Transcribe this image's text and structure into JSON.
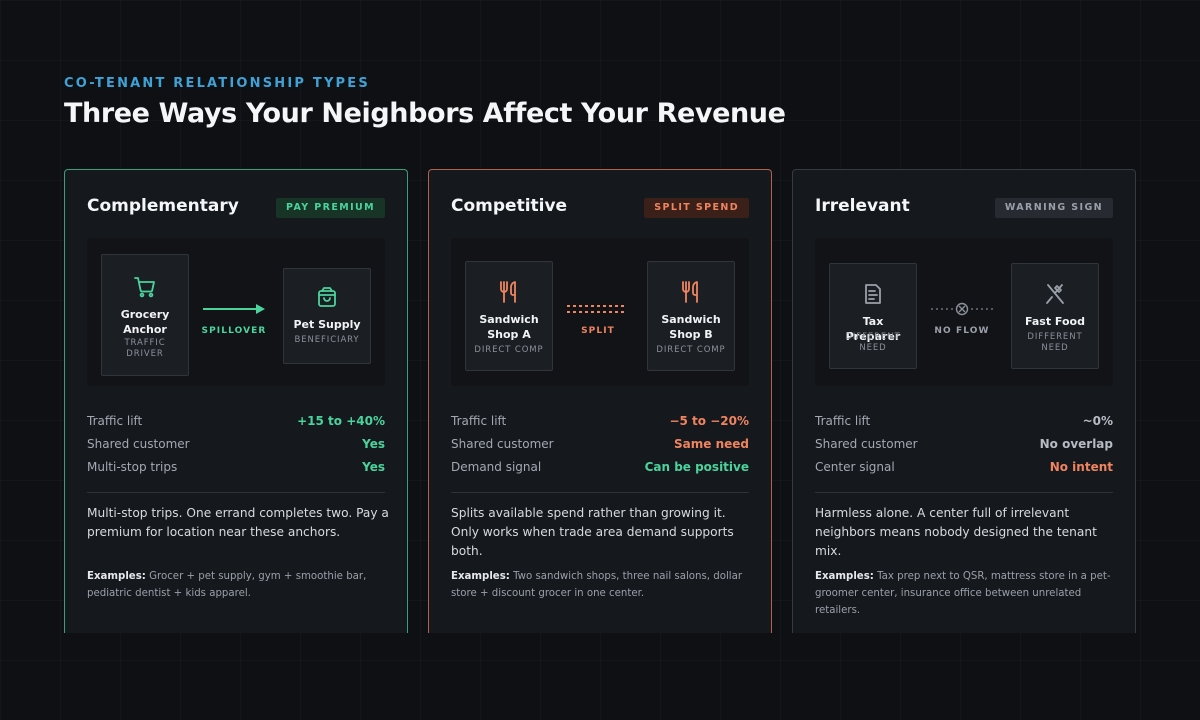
{
  "header": {
    "eyebrow": "CO-TENANT RELATIONSHIP TYPES",
    "title": "Three Ways Your Neighbors Affect Your Revenue"
  },
  "cards": [
    {
      "title": "Complementary",
      "badge": "PAY PREMIUM",
      "accent": "#4ad49c",
      "left_node": {
        "icon": "shopping-cart-icon",
        "title": "Grocery Anchor",
        "sub": "TRAFFIC DRIVER"
      },
      "link_label": "SPILLOVER",
      "right_node": {
        "icon": "shopping-bag-icon",
        "title": "Pet Supply",
        "sub": "BENEFICIARY"
      },
      "stats": [
        {
          "label": "Traffic lift",
          "value": "+15 to +40%"
        },
        {
          "label": "Shared customer",
          "value": "Yes"
        },
        {
          "label": "Multi-stop trips",
          "value": "Yes"
        }
      ],
      "description": "Multi-stop trips. One errand completes two. Pay a premium for location near these anchors.",
      "examples_label": "Examples:",
      "examples": "Grocer + pet supply, gym + smoothie bar, pediatric dentist + kids apparel."
    },
    {
      "title": "Competitive",
      "badge": "SPLIT SPEND",
      "accent": "#f0845f",
      "left_node": {
        "icon": "utensils-icon",
        "title": "Sandwich Shop A",
        "sub": "DIRECT COMP"
      },
      "link_label": "SPLIT",
      "right_node": {
        "icon": "utensils-icon",
        "title": "Sandwich Shop B",
        "sub": "DIRECT COMP"
      },
      "stats": [
        {
          "label": "Traffic lift",
          "value": "−5 to −20%"
        },
        {
          "label": "Shared customer",
          "value": "Same need"
        },
        {
          "label": "Demand signal",
          "value": "Can be positive"
        }
      ],
      "description": "Splits available spend rather than growing it. Only works when trade area demand supports both.",
      "examples_label": "Examples:",
      "examples": "Two sandwich shops, three nail salons, dollar store + discount grocer in one center."
    },
    {
      "title": "Irrelevant",
      "badge": "WARNING SIGN",
      "accent": "#9aa0a9",
      "left_node": {
        "icon": "receipt-icon",
        "title": "Tax Preparer",
        "sub": "DIFFERENT NEED"
      },
      "link_label": "NO FLOW",
      "right_node": {
        "icon": "fork-knife-icon",
        "title": "Fast Food",
        "sub": "DIFFERENT NEED"
      },
      "stats": [
        {
          "label": "Traffic lift",
          "value": "~0%"
        },
        {
          "label": "Shared customer",
          "value": "No overlap"
        },
        {
          "label": "Center signal",
          "value": "No intent"
        }
      ],
      "description": "Harmless alone. A center full of irrelevant neighbors means nobody designed the tenant mix.",
      "examples_label": "Examples:",
      "examples": "Tax prep next to QSR, mattress store in a pet-groomer center, insurance office between unrelated retailers."
    }
  ]
}
